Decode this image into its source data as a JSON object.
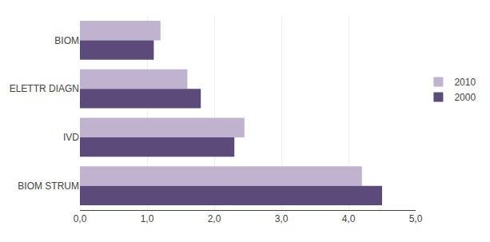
{
  "chart_data": {
    "type": "bar",
    "orientation": "horizontal",
    "categories": [
      "BIOM",
      "ELETTR DIAGN",
      "IVD",
      "BIOM STRUM"
    ],
    "series": [
      {
        "name": "2010",
        "color": "#c0b3d0",
        "values": [
          1.2,
          1.6,
          2.45,
          4.2
        ]
      },
      {
        "name": "2000",
        "color": "#5c4a7a",
        "values": [
          1.1,
          1.8,
          2.3,
          4.5
        ]
      }
    ],
    "xlim": [
      0,
      5.0
    ],
    "xticks": [
      {
        "value": 0.0,
        "label": "0,0"
      },
      {
        "value": 1.0,
        "label": "1,0"
      },
      {
        "value": 2.0,
        "label": "2,0"
      },
      {
        "value": 3.0,
        "label": "3,0"
      },
      {
        "value": 4.0,
        "label": "4,0"
      },
      {
        "value": 5.0,
        "label": "5,0"
      }
    ],
    "grid": true,
    "legend": "right"
  }
}
